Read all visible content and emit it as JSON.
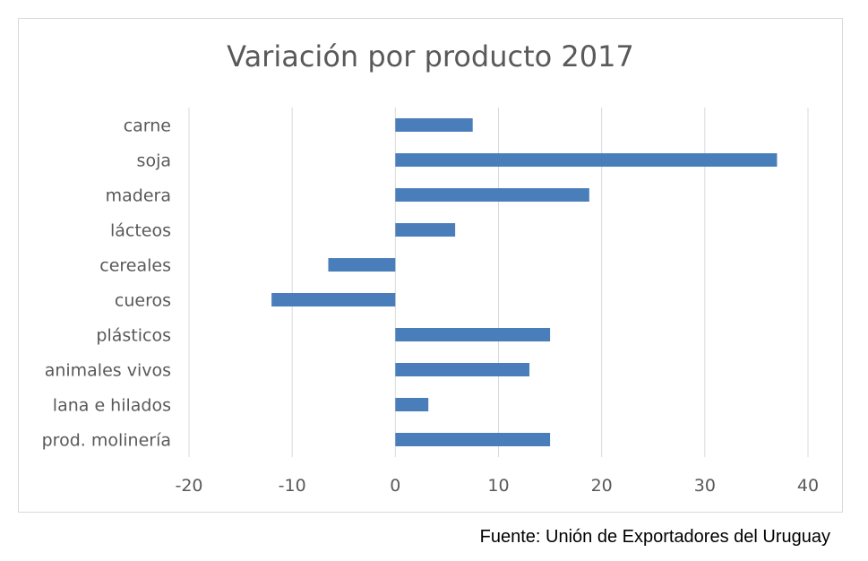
{
  "chart_data": {
    "type": "bar",
    "orientation": "horizontal",
    "title": "Variación por producto 2017",
    "categories": [
      "carne",
      "soja",
      "madera",
      "lácteos",
      "cereales",
      "cueros",
      "plásticos",
      "animales vivos",
      "lana e hilados",
      "prod. molinería"
    ],
    "values": [
      7.5,
      37,
      18.8,
      5.8,
      -6.5,
      -12,
      15,
      13,
      3.2,
      15
    ],
    "xlim": [
      -20,
      40
    ],
    "xticks": [
      -20,
      -10,
      0,
      10,
      20,
      30,
      40
    ],
    "xlabel": "",
    "ylabel": "",
    "grid": "vertical",
    "legend": "none",
    "bar_color": "#4a7ebb",
    "grid_color": "#d9d9d9"
  },
  "source": "Fuente: Unión de Exportadores del Uruguay"
}
